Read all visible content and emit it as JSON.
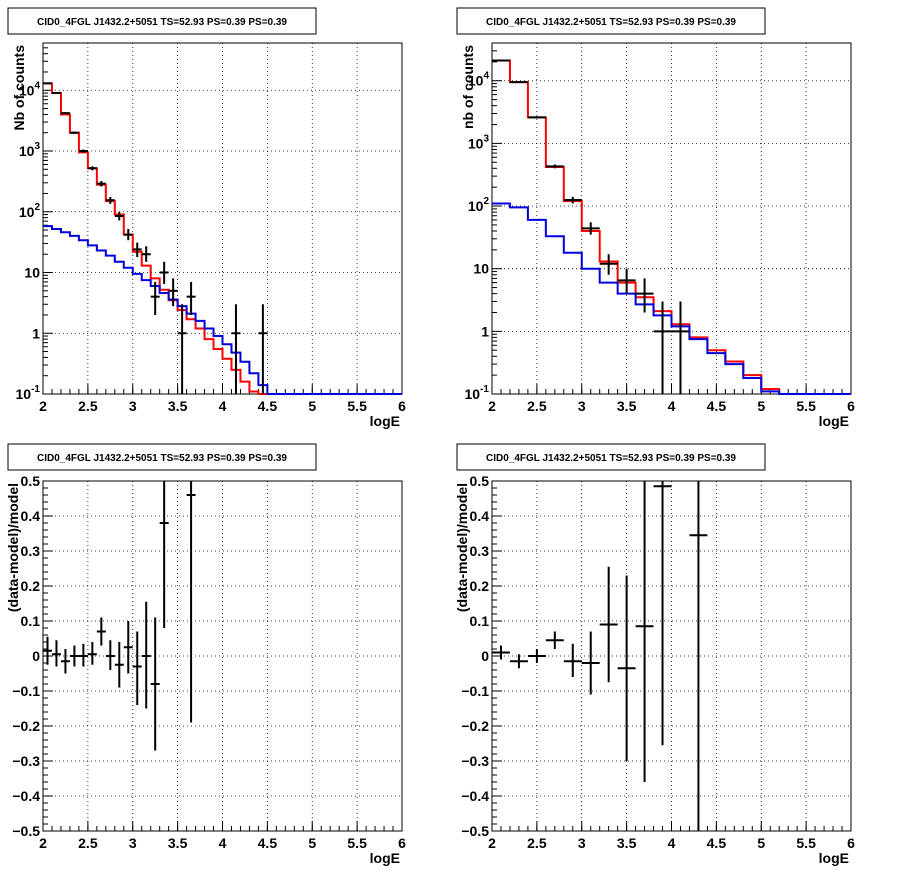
{
  "chart_data": [
    {
      "type": "histogram",
      "title": "CID0_4FGL J1432.2+5051 TS=52.93 PS=0.39 PS=0.39",
      "xlabel": "logE",
      "ylabel": "Nb of counts",
      "xlim": [
        2,
        6
      ],
      "ylim": [
        0.1,
        60000
      ],
      "yscale": "log",
      "grid": true,
      "bin_width": 0.1,
      "bin_start": 2.0,
      "series": [
        {
          "role": "total-model",
          "color": "#ff0000",
          "values": [
            13000,
            9000,
            4000,
            2000,
            950,
            520,
            280,
            150,
            90,
            42,
            22,
            13,
            8,
            5.2,
            3.5,
            2.4,
            1.7,
            1.2,
            0.8,
            0.55,
            0.38,
            0.25,
            0.16,
            0.11,
            0.1,
            0.1,
            0.1,
            0.1,
            0.1,
            0.1,
            0.1,
            0.1,
            0.1,
            0.1,
            0.1,
            0.1,
            0.1,
            0.1,
            0.1,
            0.1
          ]
        },
        {
          "role": "component-model",
          "color": "#0000dd",
          "values": [
            58,
            52,
            46,
            40,
            34,
            28,
            23,
            19,
            15,
            12,
            9.5,
            7.5,
            6,
            4.6,
            3.6,
            2.8,
            2.1,
            1.6,
            1.2,
            0.9,
            0.66,
            0.48,
            0.34,
            0.22,
            0.14,
            0.1,
            0.1,
            0.1,
            0.1,
            0.1,
            0.1,
            0.1,
            0.1,
            0.1,
            0.1,
            0.1,
            0.1,
            0.1,
            0.1,
            0.1
          ]
        },
        {
          "role": "data",
          "color": "#000000",
          "points": [
            {
              "x": 2.05,
              "y": 13000,
              "lo": 12800,
              "hi": 13200
            },
            {
              "x": 2.15,
              "y": 9000,
              "lo": 8800,
              "hi": 9200
            },
            {
              "x": 2.25,
              "y": 4200,
              "lo": 4050,
              "hi": 4350
            },
            {
              "x": 2.35,
              "y": 2000,
              "lo": 1910,
              "hi": 2090
            },
            {
              "x": 2.45,
              "y": 1000,
              "lo": 940,
              "hi": 1060
            },
            {
              "x": 2.55,
              "y": 520,
              "lo": 480,
              "hi": 560
            },
            {
              "x": 2.65,
              "y": 290,
              "lo": 260,
              "hi": 320
            },
            {
              "x": 2.75,
              "y": 155,
              "lo": 135,
              "hi": 175
            },
            {
              "x": 2.85,
              "y": 85,
              "lo": 72,
              "hi": 100
            },
            {
              "x": 2.95,
              "y": 42,
              "lo": 34,
              "hi": 52
            },
            {
              "x": 3.05,
              "y": 24,
              "lo": 18,
              "hi": 31
            },
            {
              "x": 3.15,
              "y": 20,
              "lo": 15,
              "hi": 27
            },
            {
              "x": 3.25,
              "y": 4,
              "lo": 2,
              "hi": 7
            },
            {
              "x": 3.35,
              "y": 10,
              "lo": 6.5,
              "hi": 15
            },
            {
              "x": 3.45,
              "y": 5,
              "lo": 2.8,
              "hi": 8
            },
            {
              "x": 3.55,
              "y": 1,
              "lo": 0.1,
              "hi": 3
            },
            {
              "x": 3.65,
              "y": 4,
              "lo": 2,
              "hi": 7
            },
            {
              "x": 4.15,
              "y": 1,
              "lo": 0.1,
              "hi": 3
            },
            {
              "x": 4.45,
              "y": 1,
              "lo": 0.1,
              "hi": 3
            }
          ]
        }
      ]
    },
    {
      "type": "histogram",
      "title": "CID0_4FGL J1432.2+5051 TS=52.93 PS=0.39 PS=0.39",
      "xlabel": "logE",
      "ylabel": "nb of counts",
      "xlim": [
        2,
        6
      ],
      "ylim": [
        0.1,
        40000
      ],
      "yscale": "log",
      "grid": true,
      "bin_width": 0.2,
      "bin_start": 2.0,
      "series": [
        {
          "role": "total-model",
          "color": "#ff0000",
          "values": [
            21000,
            9500,
            2600,
            420,
            120,
            40,
            13,
            6,
            3.5,
            2.1,
            1.3,
            0.8,
            0.5,
            0.33,
            0.2,
            0.12,
            0.1,
            0.1,
            0.1,
            0.1
          ]
        },
        {
          "role": "component-model",
          "color": "#0000dd",
          "values": [
            110,
            95,
            60,
            33,
            18,
            10,
            6,
            4,
            2.7,
            1.8,
            1.2,
            0.75,
            0.45,
            0.3,
            0.18,
            0.11,
            0.1,
            0.1,
            0.1,
            0.1
          ]
        },
        {
          "role": "data",
          "color": "#000000",
          "points": [
            {
              "x": 2.1,
              "y": 21000,
              "lo": 20800,
              "hi": 21200
            },
            {
              "x": 2.3,
              "y": 9500,
              "lo": 9300,
              "hi": 9700
            },
            {
              "x": 2.5,
              "y": 2600,
              "lo": 2500,
              "hi": 2700
            },
            {
              "x": 2.7,
              "y": 430,
              "lo": 400,
              "hi": 460
            },
            {
              "x": 2.9,
              "y": 125,
              "lo": 110,
              "hi": 140
            },
            {
              "x": 3.1,
              "y": 44,
              "lo": 35,
              "hi": 55
            },
            {
              "x": 3.3,
              "y": 12,
              "lo": 8,
              "hi": 17
            },
            {
              "x": 3.5,
              "y": 6.5,
              "lo": 4,
              "hi": 10
            },
            {
              "x": 3.7,
              "y": 4,
              "lo": 2,
              "hi": 7
            },
            {
              "x": 3.9,
              "y": 1,
              "lo": 0.1,
              "hi": 3
            },
            {
              "x": 4.1,
              "y": 1,
              "lo": 0.1,
              "hi": 3
            }
          ]
        }
      ]
    },
    {
      "type": "scatter-errorbars",
      "title": "CID0_4FGL J1432.2+5051 TS=52.93 PS=0.39 PS=0.39",
      "xlabel": "logE",
      "ylabel": "(data-model)/model",
      "xlim": [
        2,
        6
      ],
      "ylim": [
        -0.5,
        0.5
      ],
      "grid": true,
      "points": [
        {
          "x": 2.05,
          "y": 0.015,
          "ylo": -0.025,
          "yhi": 0.055,
          "xerr": 0.05
        },
        {
          "x": 2.15,
          "y": 0.005,
          "ylo": -0.03,
          "yhi": 0.045,
          "xerr": 0.05
        },
        {
          "x": 2.25,
          "y": -0.015,
          "ylo": -0.05,
          "yhi": 0.02,
          "xerr": 0.05
        },
        {
          "x": 2.35,
          "y": 0.0,
          "ylo": -0.03,
          "yhi": 0.03,
          "xerr": 0.05
        },
        {
          "x": 2.45,
          "y": 0.0,
          "ylo": -0.03,
          "yhi": 0.035,
          "xerr": 0.05
        },
        {
          "x": 2.55,
          "y": 0.005,
          "ylo": -0.025,
          "yhi": 0.04,
          "xerr": 0.05
        },
        {
          "x": 2.65,
          "y": 0.07,
          "ylo": 0.03,
          "yhi": 0.11,
          "xerr": 0.05
        },
        {
          "x": 2.75,
          "y": 0.0,
          "ylo": -0.04,
          "yhi": 0.045,
          "xerr": 0.05
        },
        {
          "x": 2.85,
          "y": -0.025,
          "ylo": -0.09,
          "yhi": 0.04,
          "xerr": 0.05
        },
        {
          "x": 2.95,
          "y": 0.025,
          "ylo": -0.05,
          "yhi": 0.1,
          "xerr": 0.05
        },
        {
          "x": 3.05,
          "y": -0.03,
          "ylo": -0.14,
          "yhi": 0.07,
          "xerr": 0.05
        },
        {
          "x": 3.15,
          "y": 0.0,
          "ylo": -0.15,
          "yhi": 0.155,
          "xerr": 0.05
        },
        {
          "x": 3.25,
          "y": -0.08,
          "ylo": -0.27,
          "yhi": 0.11,
          "xerr": 0.05
        },
        {
          "x": 3.35,
          "y": 0.38,
          "ylo": 0.08,
          "yhi": 0.5,
          "xerr": 0.05
        },
        {
          "x": 3.65,
          "y": 0.46,
          "ylo": -0.19,
          "yhi": 0.5,
          "xerr": 0.05
        }
      ]
    },
    {
      "type": "scatter-errorbars",
      "title": "CID0_4FGL J1432.2+5051 TS=52.93 PS=0.39 PS=0.39",
      "xlabel": "logE",
      "ylabel": "(data-model)/model",
      "xlim": [
        2,
        6
      ],
      "ylim": [
        -0.5,
        0.5
      ],
      "grid": true,
      "points": [
        {
          "x": 2.1,
          "y": 0.01,
          "ylo": -0.01,
          "yhi": 0.03,
          "xerr": 0.1
        },
        {
          "x": 2.3,
          "y": -0.015,
          "ylo": -0.035,
          "yhi": 0.005,
          "xerr": 0.1
        },
        {
          "x": 2.5,
          "y": 0.0,
          "ylo": -0.02,
          "yhi": 0.02,
          "xerr": 0.1
        },
        {
          "x": 2.7,
          "y": 0.045,
          "ylo": 0.02,
          "yhi": 0.07,
          "xerr": 0.1
        },
        {
          "x": 2.9,
          "y": -0.015,
          "ylo": -0.06,
          "yhi": 0.035,
          "xerr": 0.1
        },
        {
          "x": 3.1,
          "y": -0.02,
          "ylo": -0.11,
          "yhi": 0.07,
          "xerr": 0.1
        },
        {
          "x": 3.3,
          "y": 0.09,
          "ylo": -0.075,
          "yhi": 0.255,
          "xerr": 0.1
        },
        {
          "x": 3.5,
          "y": -0.035,
          "ylo": -0.3,
          "yhi": 0.23,
          "xerr": 0.1
        },
        {
          "x": 3.7,
          "y": 0.085,
          "ylo": -0.36,
          "yhi": 0.5,
          "xerr": 0.1
        },
        {
          "x": 3.9,
          "y": 0.485,
          "ylo": -0.255,
          "yhi": 0.5,
          "xerr": 0.1
        },
        {
          "x": 4.3,
          "y": 0.345,
          "ylo": -0.5,
          "yhi": 0.5,
          "xerr": 0.1
        }
      ]
    }
  ]
}
